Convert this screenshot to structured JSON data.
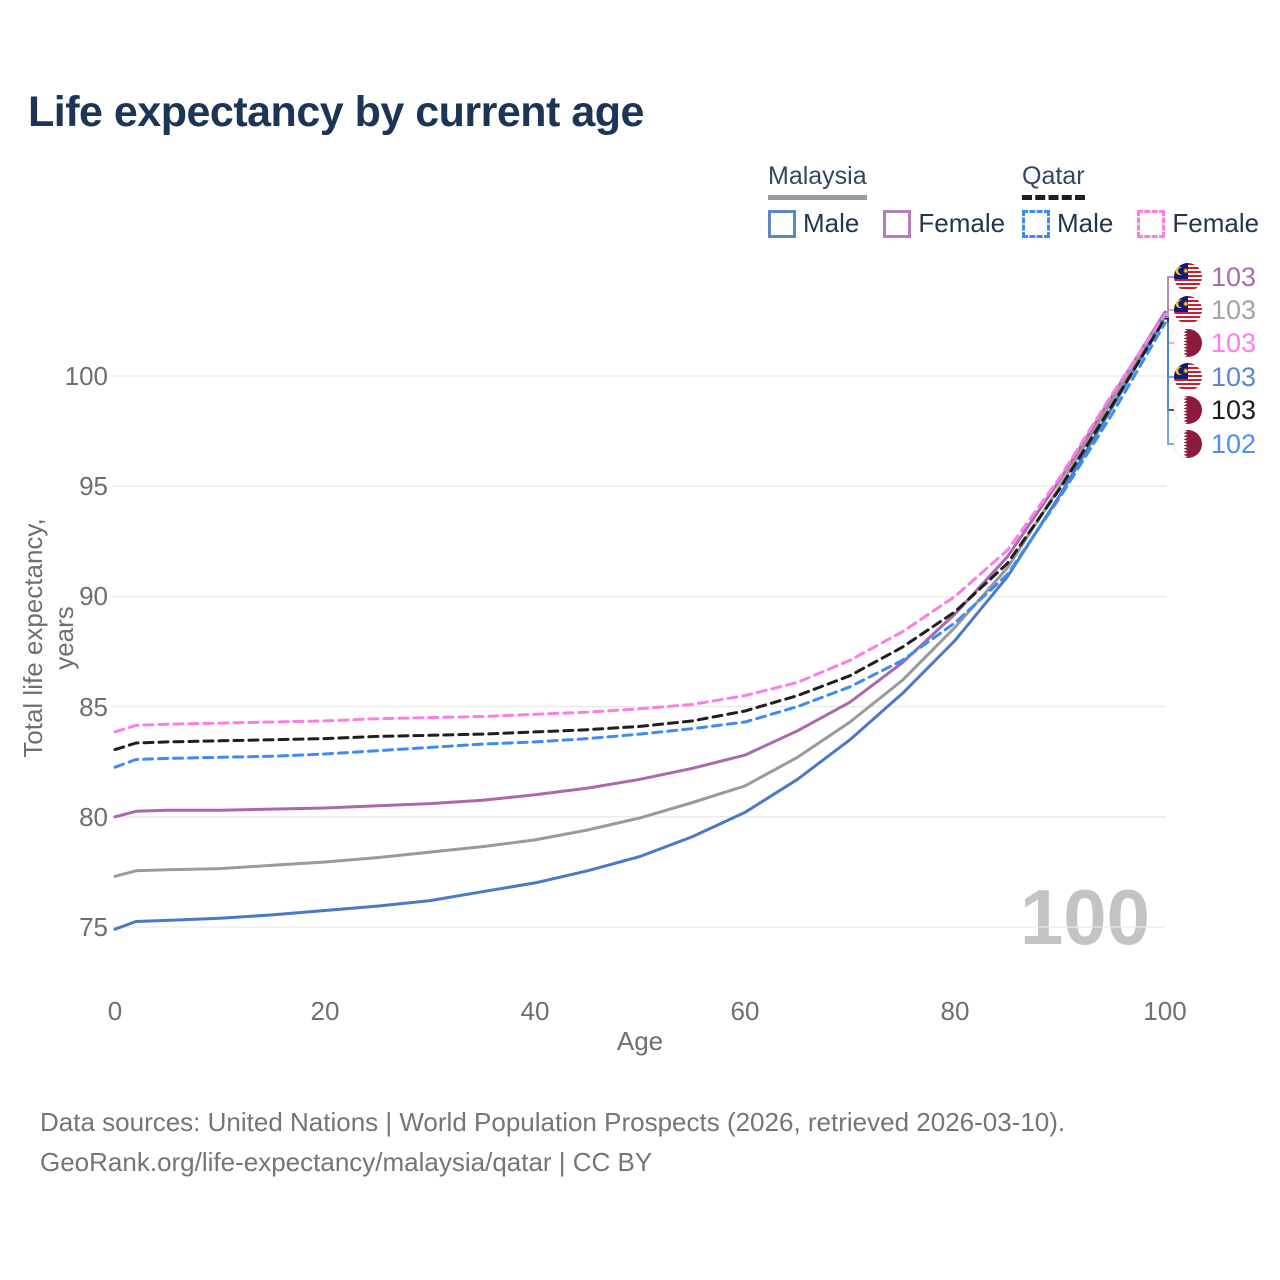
{
  "header": {
    "title": "Life expectancy by current age"
  },
  "legend": {
    "groups": [
      {
        "country": "Malaysia",
        "line_style": "solid",
        "line_color": "#9a9a9a",
        "items": [
          {
            "label": "Male",
            "color": "#5b87c5",
            "dashed": false
          },
          {
            "label": "Female",
            "color": "#b77fb9",
            "dashed": false
          }
        ]
      },
      {
        "country": "Qatar",
        "line_style": "dashed",
        "line_color": "#1f1f1f",
        "items": [
          {
            "label": "Male",
            "color": "#3f8bf2",
            "dashed": true
          },
          {
            "label": "Female",
            "color": "#fc7de6",
            "dashed": true
          }
        ]
      }
    ]
  },
  "chart_data": {
    "type": "line",
    "title": "Life expectancy by current age",
    "xlabel": "Age",
    "ylabel": "Total life expectancy, years",
    "x_ticks": [
      0,
      20,
      40,
      60,
      80,
      100
    ],
    "y_ticks": [
      75,
      80,
      85,
      90,
      95,
      100
    ],
    "xlim": [
      0,
      100
    ],
    "ylim": [
      74.5,
      103.5
    ],
    "grid": "horizontal",
    "gridline_color": "#e9e9e9",
    "hover_value_watermark": "100",
    "ages": [
      0,
      2,
      5,
      10,
      15,
      20,
      25,
      30,
      35,
      40,
      45,
      50,
      55,
      60,
      65,
      70,
      75,
      80,
      85,
      90,
      95,
      100
    ],
    "series": [
      {
        "name": "Malaysia Female",
        "country": "Malaysia",
        "sex": "Female",
        "color": "#ad68ad",
        "dashed": false,
        "values": [
          80.0,
          80.25,
          80.3,
          80.3,
          80.35,
          80.4,
          80.5,
          80.6,
          80.75,
          81.0,
          81.3,
          81.7,
          82.2,
          82.8,
          83.9,
          85.2,
          87.0,
          89.2,
          91.8,
          95.3,
          99.1,
          102.9
        ]
      },
      {
        "name": "Malaysia Total",
        "country": "Malaysia",
        "sex": "Both",
        "color": "#9a9a9a",
        "dashed": false,
        "values": [
          77.3,
          77.55,
          77.6,
          77.65,
          77.8,
          77.95,
          78.15,
          78.4,
          78.65,
          78.95,
          79.4,
          79.95,
          80.65,
          81.4,
          82.7,
          84.3,
          86.2,
          88.6,
          91.3,
          95.0,
          98.9,
          102.8
        ]
      },
      {
        "name": "Malaysia Male",
        "country": "Malaysia",
        "sex": "Male",
        "color": "#4a79c5",
        "dashed": false,
        "values": [
          74.9,
          75.25,
          75.3,
          75.4,
          75.55,
          75.75,
          75.95,
          76.2,
          76.6,
          77.0,
          77.55,
          78.2,
          79.1,
          80.2,
          81.7,
          83.5,
          85.6,
          88.0,
          90.9,
          94.6,
          98.6,
          102.7
        ]
      },
      {
        "name": "Qatar Female",
        "country": "Qatar",
        "sex": "Female",
        "color": "#fc7de6",
        "dashed": true,
        "values": [
          83.85,
          84.15,
          84.2,
          84.25,
          84.3,
          84.35,
          84.45,
          84.5,
          84.55,
          84.65,
          84.75,
          84.9,
          85.1,
          85.5,
          86.1,
          87.1,
          88.4,
          90.0,
          92.1,
          95.4,
          99.2,
          102.8
        ]
      },
      {
        "name": "Qatar Total",
        "country": "Qatar",
        "sex": "Both",
        "color": "#1f1f1f",
        "dashed": true,
        "values": [
          83.05,
          83.35,
          83.4,
          83.45,
          83.5,
          83.55,
          83.65,
          83.7,
          83.75,
          83.85,
          83.95,
          84.1,
          84.35,
          84.8,
          85.5,
          86.4,
          87.7,
          89.3,
          91.5,
          94.9,
          98.7,
          102.6
        ]
      },
      {
        "name": "Qatar Male",
        "country": "Qatar",
        "sex": "Male",
        "color": "#3f8bf2",
        "dashed": true,
        "values": [
          82.25,
          82.6,
          82.65,
          82.7,
          82.75,
          82.85,
          83.0,
          83.15,
          83.3,
          83.4,
          83.55,
          83.75,
          84.0,
          84.3,
          85.0,
          85.9,
          87.1,
          88.8,
          91.0,
          94.5,
          98.3,
          102.4
        ]
      }
    ],
    "callouts": [
      {
        "flag": "malaysia",
        "series": "Malaysia Female",
        "value": "103",
        "color": "#a96cab"
      },
      {
        "flag": "malaysia",
        "series": "Malaysia Total",
        "value": "103",
        "color": "#a3a3a3"
      },
      {
        "flag": "qatar",
        "series": "Qatar Female",
        "value": "103",
        "color": "#fc7deb"
      },
      {
        "flag": "malaysia",
        "series": "Malaysia Male",
        "value": "103",
        "color": "#5d87c9"
      },
      {
        "flag": "qatar",
        "series": "Qatar Total",
        "value": "103",
        "color": "#1c1c1c"
      },
      {
        "flag": "qatar",
        "series": "Qatar Male",
        "value": "102",
        "color": "#4e8ef2"
      }
    ]
  },
  "footer": {
    "line1": "Data sources: United Nations | World Population Prospects (2026, retrieved 2026-03-10).",
    "line2": "GeoRank.org/life-expectancy/malaysia/qatar | CC BY"
  }
}
